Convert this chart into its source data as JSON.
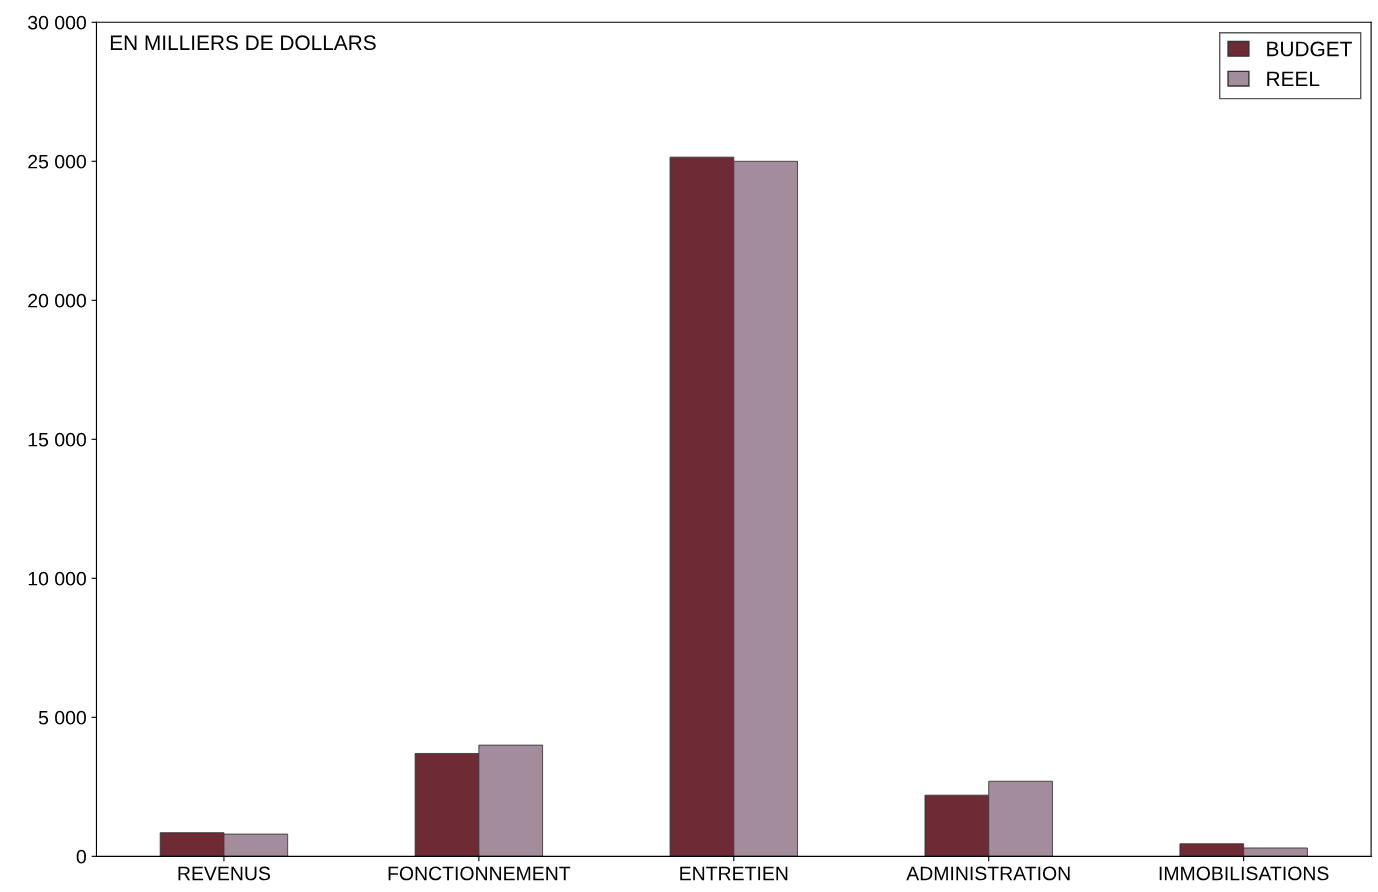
{
  "chart_data": {
    "type": "bar",
    "categories": [
      "REVENUS",
      "FONCTIONNEMENT",
      "ENTRETIEN",
      "ADMINISTRATION",
      "IMMOBILISATIONS"
    ],
    "series": [
      {
        "name": "BUDGET",
        "color": "#6e2a35",
        "values": [
          850,
          3700,
          25150,
          2200,
          450
        ]
      },
      {
        "name": "REEL",
        "color": "#a38c9b",
        "values": [
          800,
          4000,
          25000,
          2700,
          300
        ]
      }
    ],
    "ylim": [
      0,
      30000
    ],
    "yticks": [
      {
        "value": 0,
        "label": "0"
      },
      {
        "value": 5000,
        "label": "5 000"
      },
      {
        "value": 10000,
        "label": "10 000"
      },
      {
        "value": 15000,
        "label": "15 000"
      },
      {
        "value": 20000,
        "label": "20 000"
      },
      {
        "value": 25000,
        "label": "25 000"
      },
      {
        "value": 30000,
        "label": "30 000"
      }
    ],
    "annotations": [
      "EN MILLIERS DE DOLLARS"
    ],
    "legend": "top right",
    "grid": false
  }
}
